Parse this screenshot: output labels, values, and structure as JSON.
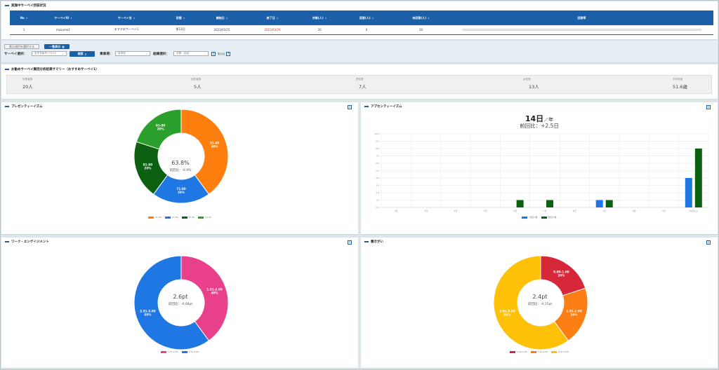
{
  "status_panel": {
    "title": "実施中サーベイ回答状況",
    "columns": [
      "No",
      "サーベイID",
      "サーベイ名",
      "形態",
      "開始日",
      "終了日",
      "対象(人)",
      "回答(人)",
      "未回答(人)",
      "回答率"
    ],
    "rows": [
      [
        "1",
        "mozume1",
        "おすすめサーベイ1",
        "第12回",
        "2023/03/25",
        "2023/03/29",
        "20",
        "0",
        "20",
        ""
      ]
    ],
    "response_rate": 0.0
  },
  "filter": {
    "display_order_button": "表示項目を選択する",
    "list_view_button": "一覧表示",
    "survey_label": "サーベイ選択：",
    "survey_value": "おすすめサーベイ1",
    "search_button": "検索",
    "business_label": "事業場：",
    "business_placeholder": "事業場",
    "org_label": "組織選択：",
    "org_placeholder": "部署・組織",
    "extra_label": "集計区"
  },
  "summary": {
    "title": "お勧めサーベイ集団分析結果サマリー（おすすめサーベイ1）",
    "items": [
      {
        "label": "対象者数",
        "value": "20人"
      },
      {
        "label": "回答者数",
        "value": "5人"
      },
      {
        "label": "男性数",
        "value": "7人"
      },
      {
        "label": "女性数",
        "value": "13人"
      },
      {
        "label": "平均年齢",
        "value": "51.6歳"
      }
    ]
  },
  "presenteeism": {
    "title": "プレゼンティーイズム",
    "center_value": "63.8%",
    "center_sub": "前回比：-6.9%"
  },
  "absenteeism": {
    "title": "アブセンティーイズム",
    "headline_days": "14日",
    "headline_unit": "／年",
    "headline_sub": "前回比：+2.5日"
  },
  "engagement": {
    "title": "ワーク・エンゲイジメント",
    "center_value": "2.6pt",
    "center_sub": "前回比：-0.08pt"
  },
  "hatarakigai": {
    "title": "働きがい",
    "center_value": "2.4pt",
    "center_sub": "前回比：-0.15pt"
  },
  "chart_data": [
    {
      "type": "pie",
      "title": "プレゼンティーイズム",
      "categories": [
        "31-40",
        "71-80",
        "81-90",
        "91-90"
      ],
      "values": [
        40,
        20,
        20,
        20
      ],
      "labels": [
        "31-40\n40%",
        "71-80\n20%",
        "81-90\n20%",
        "91-90\n20%"
      ],
      "colors": [
        "#ff7f0e",
        "#1f77e4",
        "#0b6110",
        "#2ca02c"
      ],
      "legend": "bottom"
    },
    {
      "type": "bar",
      "title": "アブセンティーイズム",
      "categories": [
        "0日",
        "1日",
        "2日",
        "3日",
        "4日",
        "5日",
        "6日",
        "7日",
        "8日",
        "9日",
        "10日以上"
      ],
      "ylim": [
        0,
        10
      ],
      "yticks": [
        "0.0",
        "1.0",
        "2.0",
        "3.0",
        "4.0",
        "5.0",
        "6.0",
        "7.0",
        "8.0",
        "9.0",
        "10.0"
      ],
      "series": [
        {
          "name": "今回人数",
          "color": "#1f77e4",
          "values": [
            0,
            0,
            0,
            0,
            0,
            0,
            0,
            1,
            0,
            0,
            4
          ]
        },
        {
          "name": "前回人数",
          "color": "#0b6110",
          "values": [
            0,
            0,
            0,
            0,
            1,
            1,
            0,
            1,
            0,
            0,
            8
          ]
        }
      ],
      "legend": "bottom"
    },
    {
      "type": "pie",
      "title": "ワーク・エンゲイジメント",
      "categories": [
        "1.51-2.00",
        "2.51-3.00"
      ],
      "values": [
        40,
        60
      ],
      "labels": [
        "1.51-2.00\n40%",
        "2.51-3.00\n60%"
      ],
      "colors": [
        "#e8408a",
        "#1f77e4"
      ],
      "legend": "bottom"
    },
    {
      "type": "pie",
      "title": "働きがい",
      "categories": [
        "0.00-1.00",
        "1.01-2.00",
        "2.01-3.00"
      ],
      "values": [
        20,
        20,
        60
      ],
      "labels": [
        "0.00-1.00\n20%",
        "1.01-2.00\n20%",
        "2.01-3.00\n60%"
      ],
      "colors": [
        "#d62839",
        "#fd7e14",
        "#ffc107"
      ],
      "legend": "bottom"
    }
  ]
}
